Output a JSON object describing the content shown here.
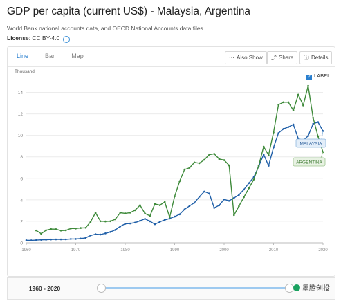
{
  "header": {
    "title": "GDP per capita (current US$) - Malaysia, Argentina",
    "subtitle": "World Bank national accounts data, and OECD National Accounts data files.",
    "license_label": "License",
    "license_value": ": CC BY-4.0",
    "info_icon": "info-icon"
  },
  "tabs": [
    {
      "label": "Line",
      "active": true
    },
    {
      "label": "Bar",
      "active": false
    },
    {
      "label": "Map",
      "active": false
    }
  ],
  "toolbar": {
    "also_show": "Also Show",
    "share": "Share",
    "details": "Details",
    "icons": {
      "also_show": "dots-icon",
      "share": "share-icon",
      "details": "info-icon"
    }
  },
  "label_toggle": {
    "label": "LABEL",
    "checked": true
  },
  "range": {
    "label": "1960 - 2020",
    "start": 1960,
    "end": 2020
  },
  "watermark": "墨腾创投",
  "colors": {
    "malaysia": "#1f5fa8",
    "argentina": "#3e8a3a",
    "accent": "#2a7fcf"
  },
  "chart_data": {
    "type": "line",
    "units_label": "Thousand",
    "xlim": [
      1960,
      2020
    ],
    "ylim": [
      0,
      15
    ],
    "x_ticks": [
      1960,
      1970,
      1980,
      1990,
      2000,
      2010,
      2020
    ],
    "x_tick_labels": [
      "1960",
      "1970",
      "1980",
      "1990",
      "2000",
      "2010",
      "2020"
    ],
    "y_ticks": [
      0,
      2,
      4,
      6,
      8,
      10,
      12,
      14
    ],
    "y_tick_labels": [
      "0",
      "2",
      "4",
      "6",
      "8",
      "10",
      "12",
      "14"
    ],
    "grid": "horizontal",
    "series": [
      {
        "name": "MALAYSIA",
        "color": "#1f5fa8",
        "x": [
          1960,
          1961,
          1962,
          1963,
          1964,
          1965,
          1966,
          1967,
          1968,
          1969,
          1970,
          1971,
          1972,
          1973,
          1974,
          1975,
          1976,
          1977,
          1978,
          1979,
          1980,
          1981,
          1982,
          1983,
          1984,
          1985,
          1986,
          1987,
          1988,
          1989,
          1990,
          1991,
          1992,
          1993,
          1994,
          1995,
          1996,
          1997,
          1998,
          1999,
          2000,
          2001,
          2002,
          2003,
          2004,
          2005,
          2006,
          2007,
          2008,
          2009,
          2010,
          2011,
          2012,
          2013,
          2014,
          2015,
          2016,
          2017,
          2018,
          2019,
          2020
        ],
        "values": [
          0.24,
          0.23,
          0.25,
          0.28,
          0.29,
          0.31,
          0.32,
          0.32,
          0.32,
          0.36,
          0.36,
          0.4,
          0.46,
          0.68,
          0.8,
          0.77,
          0.88,
          1.01,
          1.2,
          1.53,
          1.77,
          1.8,
          1.88,
          2.05,
          2.23,
          2.0,
          1.73,
          1.95,
          2.13,
          2.26,
          2.44,
          2.65,
          3.11,
          3.43,
          3.73,
          4.29,
          4.77,
          4.59,
          3.25,
          3.49,
          4.04,
          3.91,
          4.17,
          4.46,
          4.96,
          5.55,
          6.11,
          7.12,
          8.23,
          7.17,
          8.88,
          10.21,
          10.6,
          10.78,
          11.01,
          9.7,
          9.53,
          9.95,
          11.07,
          11.23,
          10.4
        ]
      },
      {
        "name": "ARGENTINA",
        "color": "#3e8a3a",
        "x": [
          1962,
          1963,
          1964,
          1965,
          1966,
          1967,
          1968,
          1969,
          1970,
          1971,
          1972,
          1973,
          1974,
          1975,
          1976,
          1977,
          1978,
          1979,
          1980,
          1981,
          1982,
          1983,
          1984,
          1985,
          1986,
          1987,
          1988,
          1989,
          1990,
          1991,
          1992,
          1993,
          1994,
          1995,
          1996,
          1997,
          1998,
          1999,
          2000,
          2001,
          2002,
          2003,
          2004,
          2005,
          2006,
          2007,
          2008,
          2009,
          2010,
          2011,
          2012,
          2013,
          2014,
          2015,
          2016,
          2017,
          2018,
          2019,
          2020
        ],
        "values": [
          1.15,
          0.85,
          1.17,
          1.28,
          1.27,
          1.14,
          1.16,
          1.33,
          1.33,
          1.38,
          1.4,
          1.95,
          2.8,
          2.01,
          1.99,
          2.01,
          2.19,
          2.8,
          2.74,
          2.81,
          3.03,
          3.5,
          2.73,
          2.51,
          3.62,
          3.5,
          3.8,
          2.38,
          4.32,
          5.73,
          6.82,
          6.98,
          7.48,
          7.41,
          7.73,
          8.21,
          8.28,
          7.8,
          7.7,
          7.21,
          2.58,
          3.41,
          4.25,
          5.08,
          5.89,
          7.19,
          8.95,
          8.16,
          10.28,
          12.85,
          13.08,
          13.08,
          12.33,
          13.79,
          12.79,
          14.61,
          11.63,
          9.91,
          8.44
        ]
      }
    ]
  }
}
